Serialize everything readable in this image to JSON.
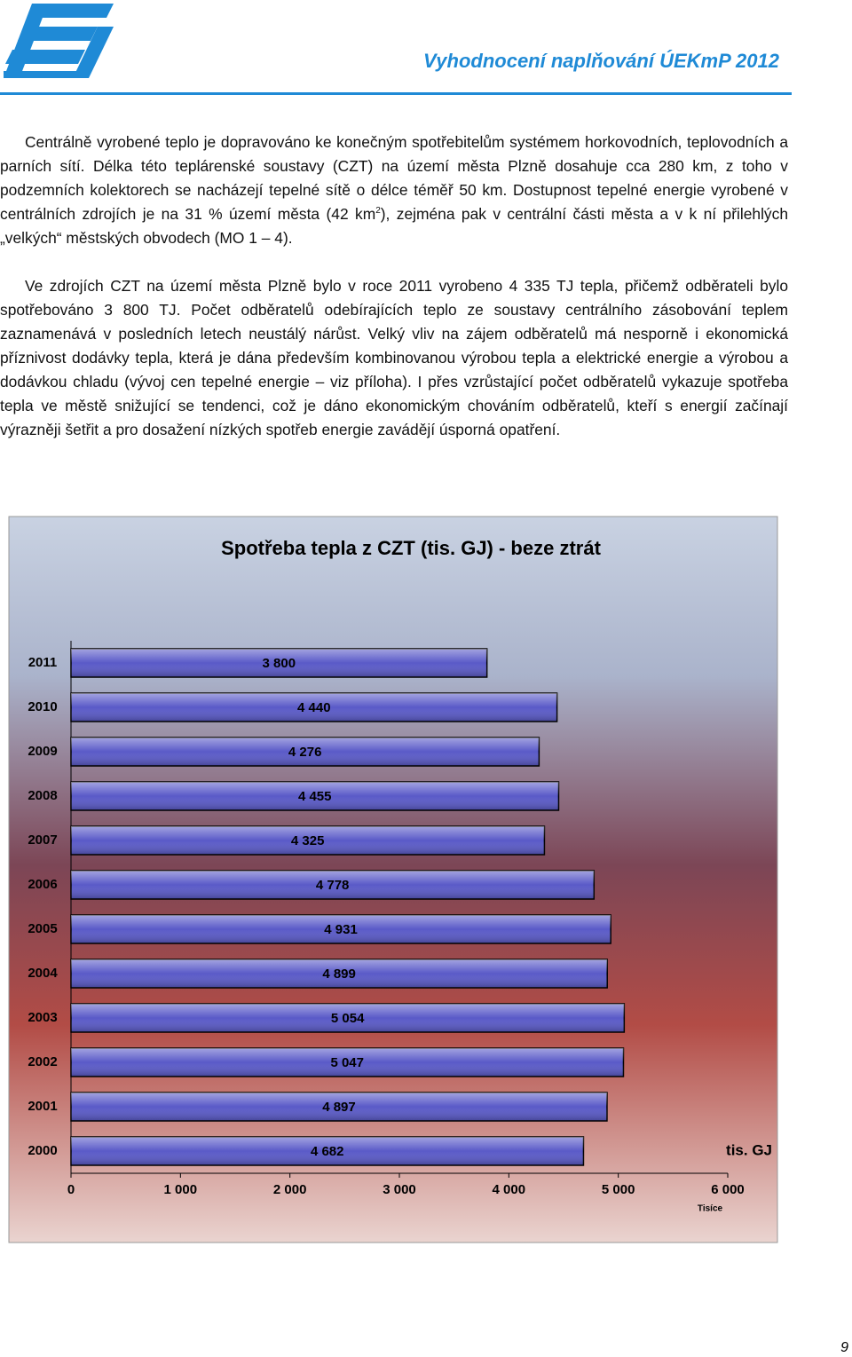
{
  "header": {
    "title": "Vyhodnocení naplňování ÚEKmP  2012"
  },
  "paragraphs": [
    {
      "before": "Centrálně vyrobené teplo je dopravováno ke konečným spotřebitelům systémem horkovodních, teplovodních a parních sítí. Délka této teplárenské soustavy (CZT) na území města Plzně dosahuje cca 280 km, z toho v podzemních kolektorech se nacházejí tepelné sítě o délce téměř 50 km. Dostupnost tepelné energie vyrobené v centrálních zdrojích je na 31 % území města (42 km",
      "sup": "2",
      "after": "), zejména pak v centrální části města a v k ní přilehlých „velkých“ městských obvodech (MO 1 – 4)."
    },
    {
      "text": "Ve zdrojích CZT na území města Plzně bylo v roce 2011 vyrobeno 4 335 TJ tepla, přičemž odběrateli bylo spotřebováno 3 800 TJ. Počet odběratelů odebírajících teplo ze soustavy centrálního zásobování teplem zaznamenává v posledních letech neustálý nárůst. Velký vliv na zájem odběratelů má nesporně i ekonomická příznivost dodávky tepla, která je dána především kombinovanou výrobou tepla a elektrické energie a výrobou a dodávkou chladu (vývoj cen tepelné energie – viz příloha).  I přes vzrůstající počet odběratelů vykazuje spotřeba tepla ve městě snižující se tendenci, což je dáno ekonomickým chováním odběratelů, kteří s energií začínají výrazněji šetřit a pro dosažení nízkých spotřeb energie zavádějí úsporná opatření."
    }
  ],
  "chart_data": {
    "type": "bar",
    "orientation": "horizontal",
    "title": "Spotřeba tepla z CZT (tis. GJ) - beze ztrát",
    "categories": [
      "2011",
      "2010",
      "2009",
      "2008",
      "2007",
      "2006",
      "2005",
      "2004",
      "2003",
      "2002",
      "2001",
      "2000"
    ],
    "values": [
      3800,
      4440,
      4276,
      4455,
      4325,
      4778,
      4931,
      4899,
      5054,
      5047,
      4897,
      4682
    ],
    "value_labels": [
      "3 800",
      "4 440",
      "4 276",
      "4 455",
      "4 325",
      "4 778",
      "4 931",
      "4 899",
      "5 054",
      "5 047",
      "4 897",
      "4 682"
    ],
    "color": "#5a5ac8",
    "xlim": [
      0,
      6000
    ],
    "xticks": [
      0,
      {
        "value": 1000,
        "label": "1 000"
      },
      {
        "value": 2000,
        "label": "2 000"
      },
      {
        "value": 3000,
        "label": "3 000"
      },
      {
        "value": 4000,
        "label": "4 000"
      },
      {
        "value": 5000,
        "label": "5 000"
      },
      {
        "value": 6000,
        "label": "6 000"
      }
    ],
    "unit_label": "tis. GJ",
    "axis_note": "Tisíce"
  },
  "page_number": "9"
}
